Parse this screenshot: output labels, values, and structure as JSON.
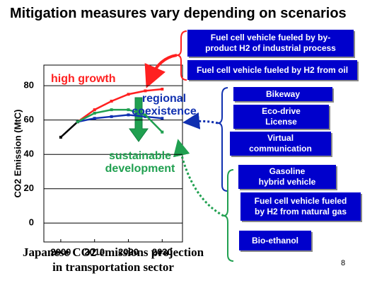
{
  "slide": {
    "title": "Mitigation measures vary depending on scenarios",
    "caption": [
      "Japanese CO2 emissions projection",
      "in transportation sector"
    ],
    "page_number": "8",
    "boxes": [
      [
        "Fuel cell vehicle fueled by by-",
        "product H2 of industrial process"
      ],
      [
        "Fuel cell vehicle fueled by H2 from oil"
      ],
      [
        "Bikeway"
      ],
      [
        "Eco-drive",
        "License"
      ],
      [
        "Virtual",
        "communication"
      ],
      [
        "Gasoline",
        "hybrid vehicle"
      ],
      [
        "Fuel cell vehicle fueled",
        "by H2 from natural gas"
      ],
      [
        "Bio-ethanol"
      ]
    ]
  },
  "chart_data": {
    "type": "line",
    "y_label": "CO2 Emission (MtC)",
    "x": [
      2000,
      2005,
      2010,
      2015,
      2020,
      2025,
      2030
    ],
    "series": [
      {
        "color": "#000000",
        "values": [
          50,
          59,
          null,
          null,
          null,
          null,
          null
        ]
      },
      {
        "name": "high growth",
        "color": "#ff2020",
        "values": [
          null,
          59,
          66,
          71,
          75,
          77,
          78
        ]
      },
      {
        "name": "regional coexistence",
        "color": "#1030b0",
        "values": [
          null,
          59,
          61,
          62,
          63,
          62,
          61
        ]
      },
      {
        "name": "sustainable development",
        "color": "#20a050",
        "values": [
          null,
          59,
          64,
          66,
          66,
          63,
          53
        ]
      }
    ],
    "xlim": [
      1995,
      2036
    ],
    "xticks": [
      2000,
      2010,
      2020,
      2030
    ],
    "ylim": [
      -11,
      92
    ],
    "yticks": [
      0,
      20,
      40,
      60,
      80
    ],
    "grid": true
  }
}
